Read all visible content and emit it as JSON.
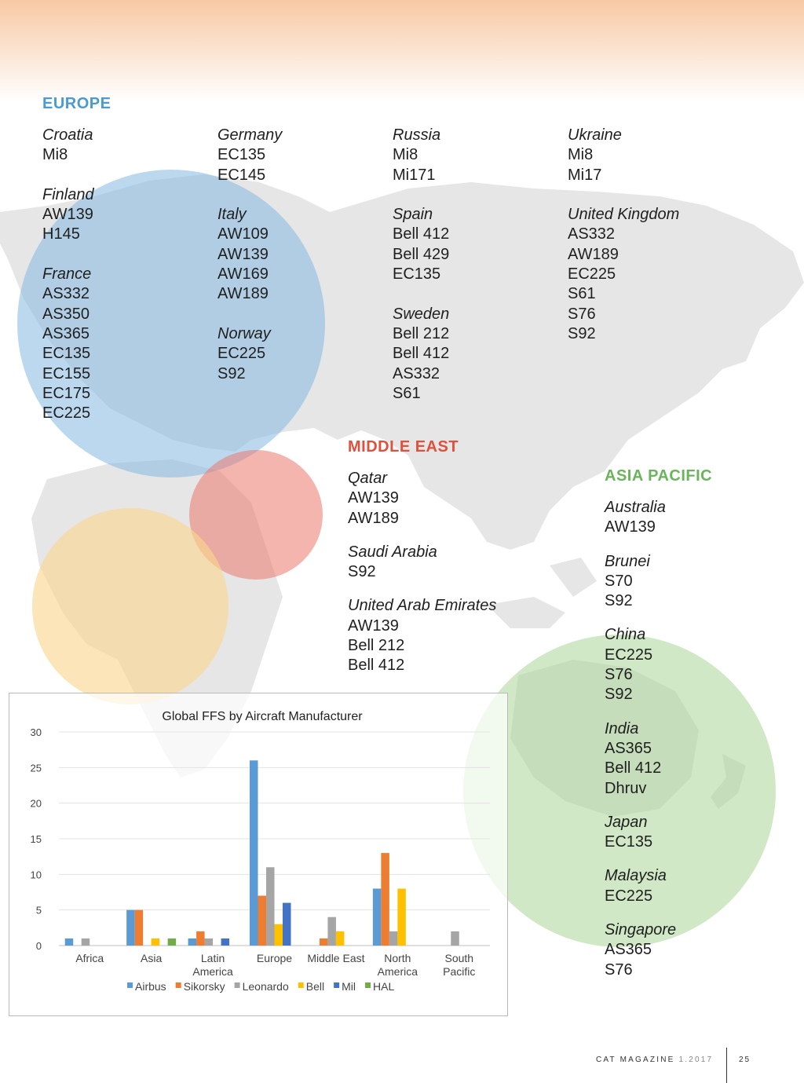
{
  "europe": {
    "title": "EUROPE",
    "columns": [
      [
        {
          "country": "Croatia",
          "models": [
            "Mi8"
          ]
        },
        {
          "country": "Finland",
          "models": [
            "AW139",
            "H145"
          ]
        },
        {
          "country": "France",
          "models": [
            "AS332",
            "AS350",
            "AS365",
            "EC135",
            "EC155",
            "EC175",
            "EC225"
          ]
        }
      ],
      [
        {
          "country": "Germany",
          "models": [
            "EC135",
            "EC145"
          ]
        },
        {
          "country": "Italy",
          "models": [
            "AW109",
            "AW139",
            "AW169",
            "AW189"
          ]
        },
        {
          "country": "Norway",
          "models": [
            "EC225",
            "S92"
          ]
        }
      ],
      [
        {
          "country": "Russia",
          "models": [
            "Mi8",
            "Mi171"
          ]
        },
        {
          "country": "Spain",
          "models": [
            "Bell 412",
            "Bell 429",
            "EC135"
          ]
        },
        {
          "country": "Sweden",
          "models": [
            "Bell 212",
            "Bell 412",
            "AS332",
            "S61"
          ]
        }
      ],
      [
        {
          "country": "Ukraine",
          "models": [
            "Mi8",
            "Mi17"
          ]
        },
        {
          "country": "United Kingdom",
          "models": [
            "AS332",
            "AW189",
            "EC225",
            "S61",
            "S76",
            "S92"
          ]
        }
      ]
    ]
  },
  "middle_east": {
    "title": "MIDDLE EAST",
    "entries": [
      {
        "country": "Qatar",
        "models": [
          "AW139",
          "AW189"
        ]
      },
      {
        "country": "Saudi Arabia",
        "models": [
          "S92"
        ]
      },
      {
        "country": "United Arab Emirates",
        "models": [
          "AW139",
          "Bell 212",
          "Bell 412"
        ]
      }
    ]
  },
  "asia_pacific": {
    "title": "ASIA PACIFIC",
    "entries": [
      {
        "country": "Australia",
        "models": [
          "AW139"
        ]
      },
      {
        "country": "Brunei",
        "models": [
          "S70",
          "S92"
        ]
      },
      {
        "country": "China",
        "models": [
          "EC225",
          "S76",
          "S92"
        ]
      },
      {
        "country": "India",
        "models": [
          "AS365",
          "Bell 412",
          "Dhruv"
        ]
      },
      {
        "country": "Japan",
        "models": [
          "EC135"
        ]
      },
      {
        "country": "Malaysia",
        "models": [
          "EC225"
        ]
      },
      {
        "country": "Singapore",
        "models": [
          "AS365",
          "S76"
        ]
      }
    ]
  },
  "chart_data": {
    "type": "bar",
    "title": "Global FFS by Aircraft Manufacturer",
    "xlabel": "",
    "ylabel": "",
    "ylim": [
      0,
      30
    ],
    "yticks": [
      0,
      5,
      10,
      15,
      20,
      25,
      30
    ],
    "grid": true,
    "legend_position": "bottom",
    "categories": [
      [
        "Africa"
      ],
      [
        "Asia"
      ],
      [
        "Latin",
        "America"
      ],
      [
        "Europe"
      ],
      [
        "Middle East"
      ],
      [
        "North",
        "America"
      ],
      [
        "South",
        "Pacific"
      ]
    ],
    "series": [
      {
        "name": "Airbus",
        "color": "#5b9bd5",
        "values": [
          1,
          5,
          1,
          26,
          0,
          8,
          0
        ]
      },
      {
        "name": "Sikorsky",
        "color": "#ed7d31",
        "values": [
          0,
          5,
          2,
          7,
          1,
          13,
          0
        ]
      },
      {
        "name": "Leonardo",
        "color": "#a5a5a5",
        "values": [
          1,
          0,
          1,
          11,
          4,
          2,
          2
        ]
      },
      {
        "name": "Bell",
        "color": "#ffc000",
        "values": [
          0,
          1,
          0,
          3,
          2,
          8,
          0
        ]
      },
      {
        "name": "Mil",
        "color": "#4472c4",
        "values": [
          0,
          0,
          1,
          6,
          0,
          0,
          0
        ]
      },
      {
        "name": "HAL",
        "color": "#70ad47",
        "values": [
          0,
          1,
          0,
          0,
          0,
          0,
          0
        ]
      }
    ]
  },
  "footer": {
    "magazine": "CAT MAGAZINE",
    "issue": "1.2017",
    "page": "25"
  },
  "colors": {
    "europe": "#4a9ad3",
    "middle_east": "#e0503c",
    "asia_pacific": "#6ab45a",
    "africa": "#f5c86a"
  }
}
